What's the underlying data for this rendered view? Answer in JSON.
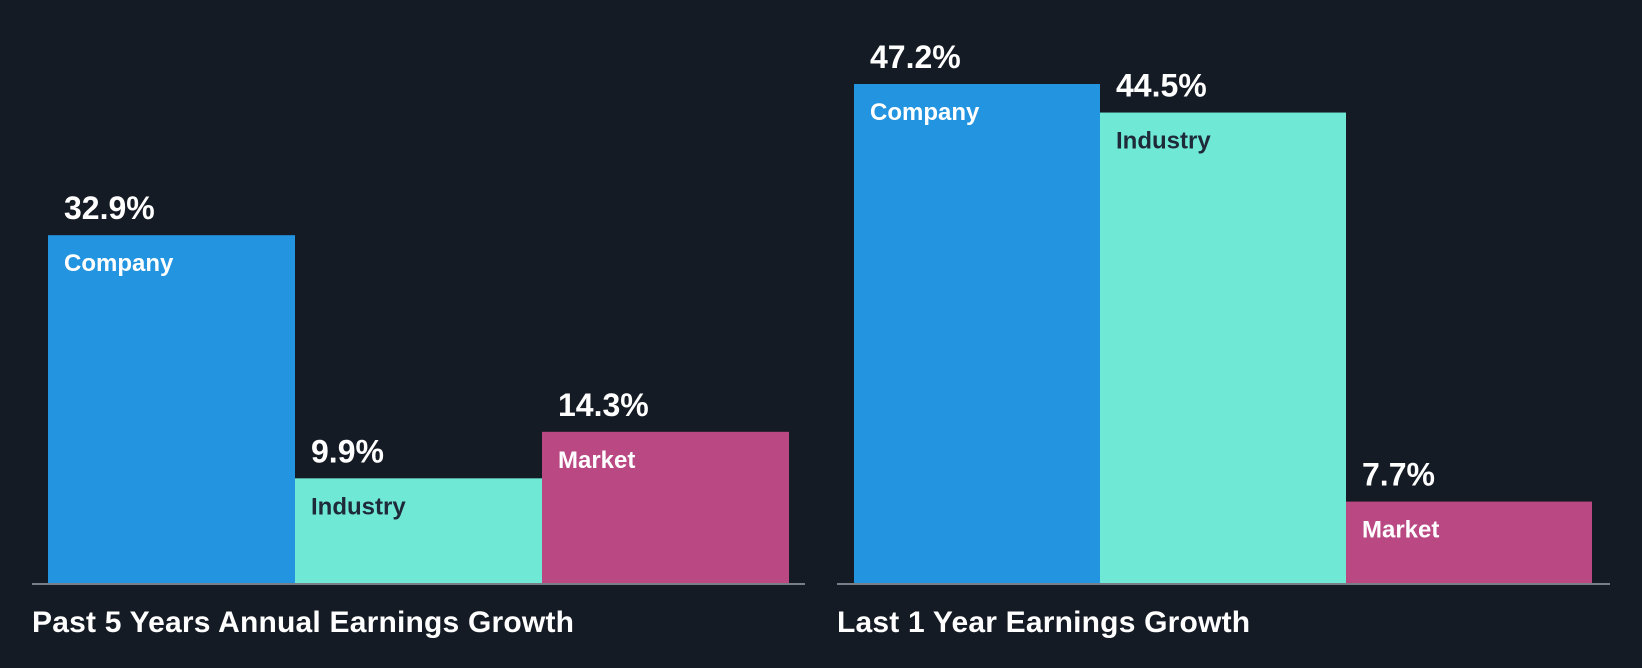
{
  "chart_data": [
    {
      "type": "bar",
      "title": "Past 5 Years Annual Earnings Growth",
      "categories": [
        "Company",
        "Industry",
        "Market"
      ],
      "values": [
        32.9,
        9.9,
        14.3
      ],
      "value_labels": [
        "32.9%",
        "9.9%",
        "14.3%"
      ],
      "unit": "%",
      "ylim": [
        0,
        47.2
      ],
      "grid": false,
      "legend": "none"
    },
    {
      "type": "bar",
      "title": "Last 1 Year Earnings Growth",
      "categories": [
        "Company",
        "Industry",
        "Market"
      ],
      "values": [
        47.2,
        44.5,
        7.7
      ],
      "value_labels": [
        "47.2%",
        "44.5%",
        "7.7%"
      ],
      "unit": "%",
      "ylim": [
        0,
        47.2
      ],
      "grid": false,
      "legend": "none"
    }
  ],
  "colors": {
    "background": "#151b24",
    "company": "#2394e0",
    "industry": "#6fe8d6",
    "market": "#b94883",
    "baseline": "#7a7f87",
    "value_text": "#ffffff",
    "label_light": "#ffffff",
    "label_dark": "#1e2a38"
  }
}
